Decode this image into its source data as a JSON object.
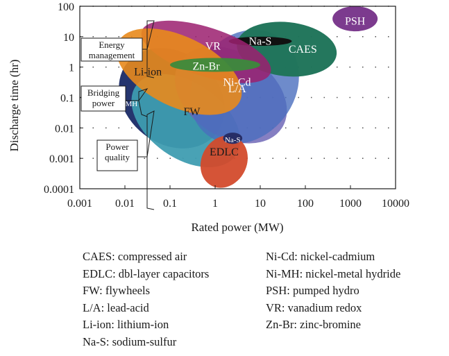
{
  "chart_data": {
    "type": "area",
    "title": "",
    "xlabel": "Rated power (MW)",
    "ylabel": "Discharge time (hr)",
    "x_scale": "log",
    "y_scale": "log",
    "xlim": [
      0.001,
      10000
    ],
    "ylim": [
      0.0001,
      100
    ],
    "x_ticks": [
      0.001,
      0.01,
      0.1,
      1,
      10,
      100,
      1000,
      10000
    ],
    "x_tick_labels": [
      "0.001",
      "0.01",
      "0.1",
      "1",
      "10",
      "100",
      "1000",
      "10000"
    ],
    "y_ticks": [
      0.0001,
      0.001,
      0.01,
      0.1,
      1,
      10,
      100
    ],
    "y_tick_labels": [
      "0.0001",
      "0.001",
      "0.01",
      "0.1",
      "1",
      "10",
      "100"
    ],
    "grid": "dotted horizontal",
    "regions": [
      {
        "label": "Ni-MH",
        "power_range_mw": [
          0.006,
          2
        ],
        "discharge_range_hr": [
          0.003,
          3
        ],
        "color": "#25356e"
      },
      {
        "label": "FW",
        "power_range_mw": [
          0.01,
          5
        ],
        "discharge_range_hr": [
          0.001,
          0.3
        ],
        "color": "#3e9cb0"
      },
      {
        "label": "Ni-Cd",
        "power_range_mw": [
          0.1,
          50
        ],
        "discharge_range_hr": [
          0.005,
          3
        ],
        "color": "#6a63b4"
      },
      {
        "label": "L/A",
        "power_range_mw": [
          0.2,
          100
        ],
        "discharge_range_hr": [
          0.005,
          10
        ],
        "color": "#4a6ebe"
      },
      {
        "label": "EDLC",
        "power_range_mw": [
          0.5,
          5
        ],
        "discharge_range_hr": [
          0.0001,
          0.006
        ],
        "color": "#d34b2c"
      },
      {
        "label": "Na-S",
        "power_range_mw": [
          1.5,
          4
        ],
        "discharge_range_hr": [
          0.003,
          0.007
        ],
        "color": "#272d66"
      },
      {
        "label": "CAES",
        "power_range_mw": [
          3,
          500
        ],
        "discharge_range_hr": [
          0.5,
          30
        ],
        "color": "#20745a"
      },
      {
        "label": "Na-S",
        "power_range_mw": [
          2,
          50
        ],
        "discharge_range_hr": [
          5,
          10
        ],
        "color": "#111111"
      },
      {
        "label": "VR",
        "power_range_mw": [
          0.02,
          20
        ],
        "discharge_range_hr": [
          0.5,
          20
        ],
        "color": "#9c2170"
      },
      {
        "label": "Li-ion",
        "power_range_mw": [
          0.005,
          5
        ],
        "discharge_range_hr": [
          0.05,
          10
        ],
        "color": "#e88a1c"
      },
      {
        "label": "Zn-Br",
        "power_range_mw": [
          0.1,
          10
        ],
        "discharge_range_hr": [
          0.7,
          2
        ],
        "color": "#3c8a3c"
      },
      {
        "label": "PSH",
        "power_range_mw": [
          400,
          4000
        ],
        "discharge_range_hr": [
          15,
          100
        ],
        "color": "#7c3b8e"
      }
    ],
    "annotations": [
      {
        "text": [
          "Energy",
          "management"
        ]
      },
      {
        "text": [
          "Bridging",
          "power"
        ]
      },
      {
        "text": [
          "Power",
          "quality"
        ]
      }
    ]
  },
  "glossary": {
    "left": [
      "CAES: compressed air",
      "EDLC: dbl-layer capacitors",
      "FW: flywheels",
      "L/A: lead-acid",
      "Li-ion: lithium-ion",
      "Na-S: sodium-sulfur"
    ],
    "right": [
      "Ni-Cd: nickel-cadmium",
      "Ni-MH: nickel-metal hydride",
      "PSH: pumped hydro",
      "VR: vanadium redox",
      "Zn-Br: zinc-bromine"
    ]
  }
}
